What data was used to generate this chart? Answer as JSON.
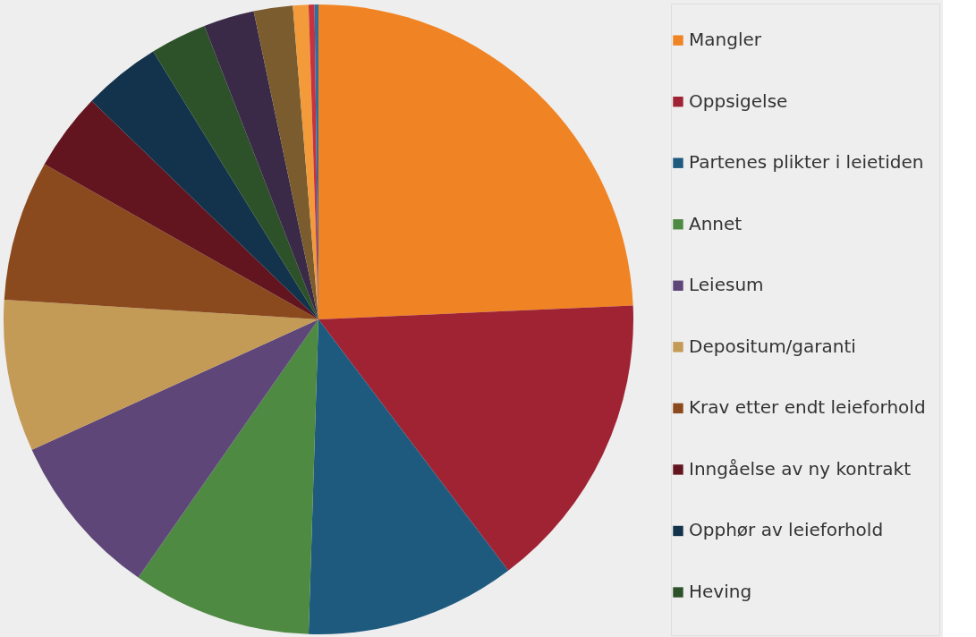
{
  "chart_data": {
    "type": "pie",
    "categories": [
      "Mangler",
      "Oppsigelse",
      "Partenes plikter i leietiden",
      "Annet",
      "Leiesum",
      "Depositum/garanti",
      "Krav etter endt leieforhold",
      "Inngåelse av ny kontrakt",
      "Opphør av leieforhold",
      "Heving",
      null,
      null,
      null,
      null,
      null
    ],
    "values": [
      24.3,
      15.4,
      10.8,
      9.2,
      8.5,
      7.8,
      7.2,
      4.0,
      4.0,
      2.9,
      2.6,
      2.0,
      0.8,
      0.3,
      0.2
    ],
    "colors": [
      "#f08323",
      "#a02334",
      "#1e5a7e",
      "#4e8a42",
      "#5e4778",
      "#c49a57",
      "#8b4a1e",
      "#63151f",
      "#12334b",
      "#2d5128",
      "#3a2a48",
      "#7a5c2e",
      "#f39a3a",
      "#c8323f",
      "#2f6fa0"
    ],
    "legend": "right"
  }
}
